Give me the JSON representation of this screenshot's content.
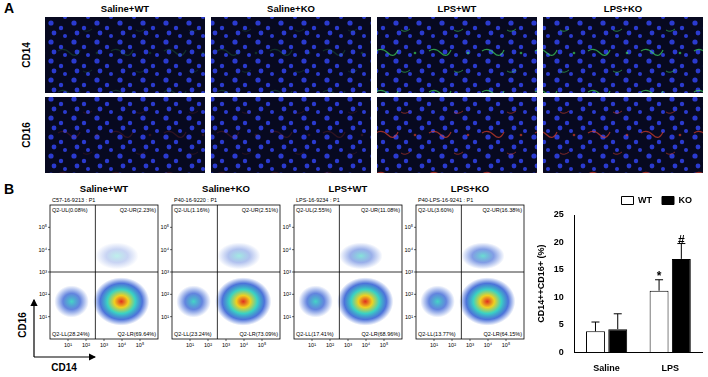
{
  "panel_a": {
    "label": "A",
    "columns": [
      "Saline+WT",
      "Saline+KO",
      "LPS+WT",
      "LPS+KO"
    ],
    "rows": [
      {
        "label": "CD14",
        "color": "#3fdc5c"
      },
      {
        "label": "CD16",
        "color": "#e0402a"
      }
    ]
  },
  "panel_b": {
    "label": "B",
    "x_label": "CD14",
    "y_label": "CD16",
    "axis_ticks": [
      "10¹",
      "10²",
      "10³",
      "10⁴",
      "10⁵"
    ],
    "plots": [
      {
        "title": "Saline+WT",
        "sample": "C57-16-9213 : P1",
        "quadrants": [
          "Q2-UL(0.08%)",
          "Q2-UR(2.23%)",
          "Q2-LL(28.24%)",
          "Q2-LR(69.64%)"
        ]
      },
      {
        "title": "Saline+KO",
        "sample": "P40-16-9220 : P1",
        "quadrants": [
          "Q2-UL(1.16%)",
          "Q2-UR(2.51%)",
          "Q2-LL(23.24%)",
          "Q2-LR(73.09%)"
        ]
      },
      {
        "title": "LPS+WT",
        "sample": "LPS-16-9234 : P1",
        "quadrants": [
          "Q2-UL(2.55%)",
          "Q2-UR(11.08%)",
          "Q2-LL(17.41%)",
          "Q2-LR(68.96%)"
        ]
      },
      {
        "title": "LPS+KO",
        "sample": "P40-LPS-16-9241 : P1",
        "quadrants": [
          "Q2-UL(3.60%)",
          "Q2-UR(16.38%)",
          "Q2-LL(13.77%)",
          "Q2-LR(64.15%)"
        ]
      }
    ]
  },
  "chart_data": {
    "type": "bar",
    "categories": [
      "Saline",
      "LPS"
    ],
    "series": [
      {
        "name": "WT",
        "color": "#ffffff",
        "values": [
          3.8,
          11.2
        ],
        "errors": [
          1.7,
          2.0
        ]
      },
      {
        "name": "KO",
        "color": "#000000",
        "values": [
          4.2,
          17.0
        ],
        "errors": [
          2.8,
          2.8
        ]
      }
    ],
    "y_label": "CD14++CD16+ (%)",
    "ylim": [
      0,
      25
    ],
    "yticks": [
      0,
      5,
      10,
      15,
      20,
      25
    ],
    "grid": false,
    "legend": "top-right",
    "annotations": [
      {
        "text": "*",
        "category": "LPS",
        "series": "WT"
      },
      {
        "text": "#",
        "category": "LPS",
        "series": "KO"
      }
    ]
  }
}
